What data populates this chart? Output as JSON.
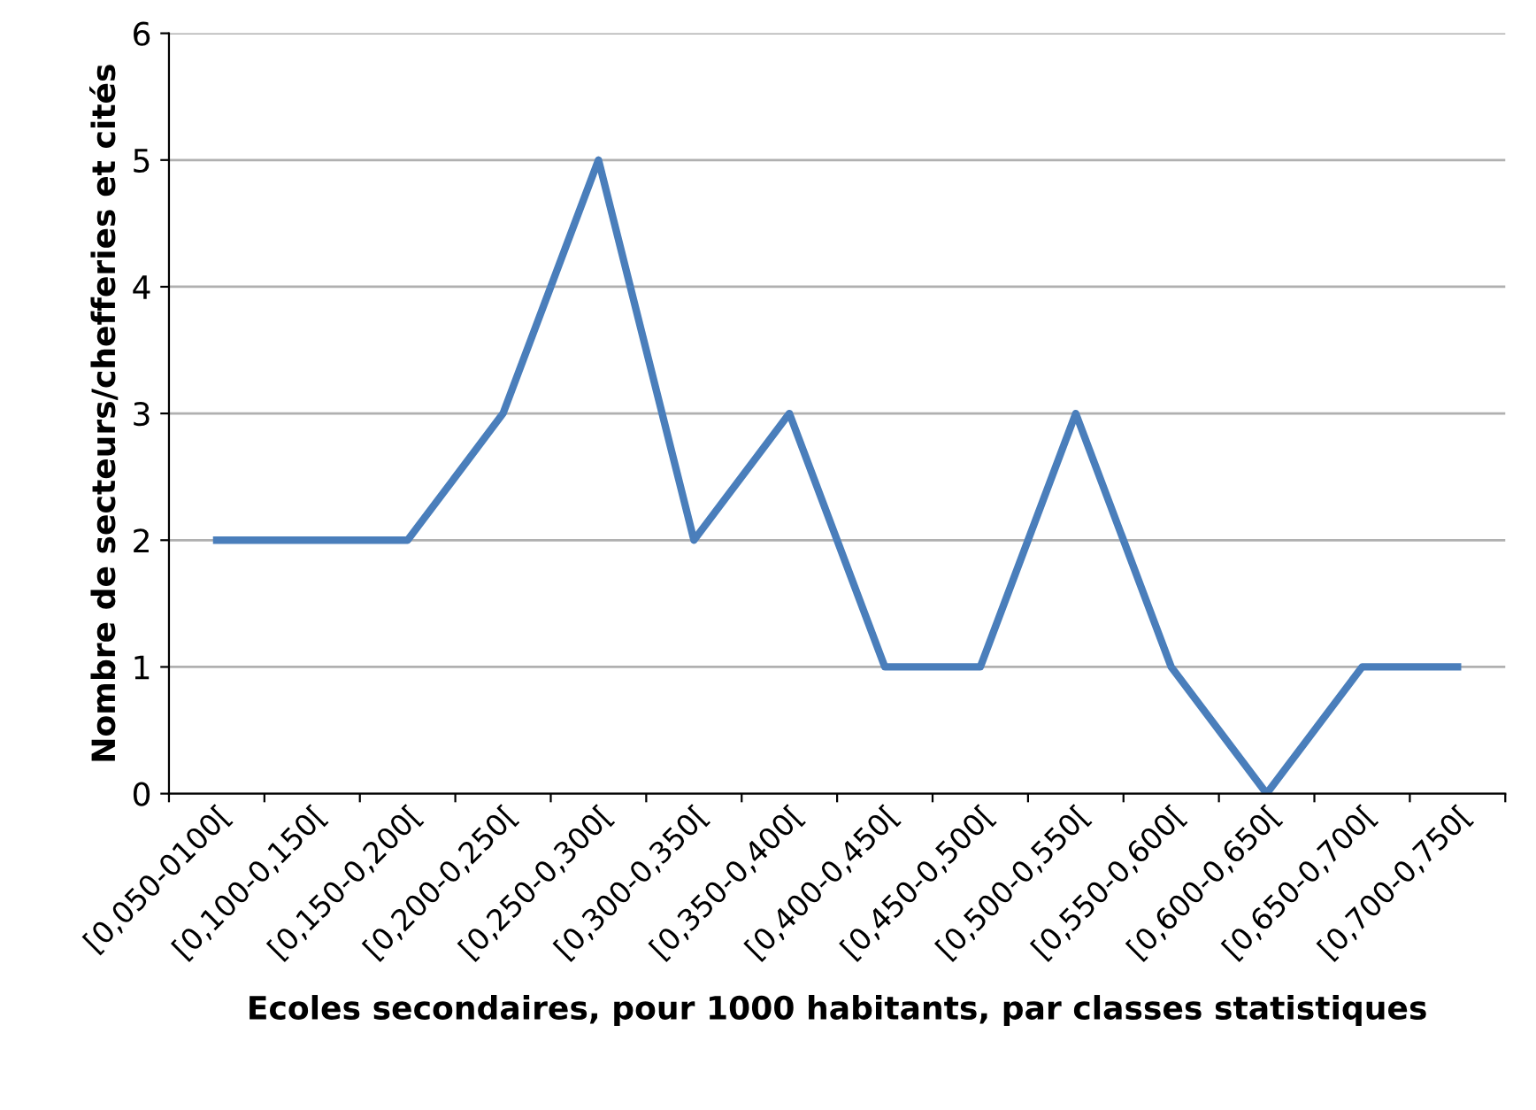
{
  "chart_data": {
    "type": "line",
    "xlabel": "Ecoles secondaires, pour 1000 habitants, par classes statistiques",
    "ylabel": "Nombre de secteurs/chefferies et cités",
    "categories": [
      "[0,050-0100[",
      "[0,100-0,150[",
      "[0,150-0,200[",
      "[0,200-0,250[",
      "[0,250-0,300[",
      "[0,300-0,350[",
      "[0,350-0,400[",
      "[0,400-0,450[",
      "[0,450-0,500[",
      "[0,500-0,550[",
      "[0,550-0,600[",
      "[0,600-0,650[",
      "[0,650-0,700[",
      "[0,700-0,750["
    ],
    "series": [
      {
        "color": "#4a7ebb",
        "values": [
          2,
          2,
          2,
          3,
          5,
          2,
          3,
          1,
          1,
          3,
          1,
          0,
          1,
          1
        ]
      }
    ],
    "ylim": [
      0,
      6
    ],
    "yticks": [
      0,
      1,
      2,
      3,
      4,
      5,
      6
    ],
    "grid": "y",
    "legend": false,
    "marker": "none",
    "line_style": "solid"
  }
}
